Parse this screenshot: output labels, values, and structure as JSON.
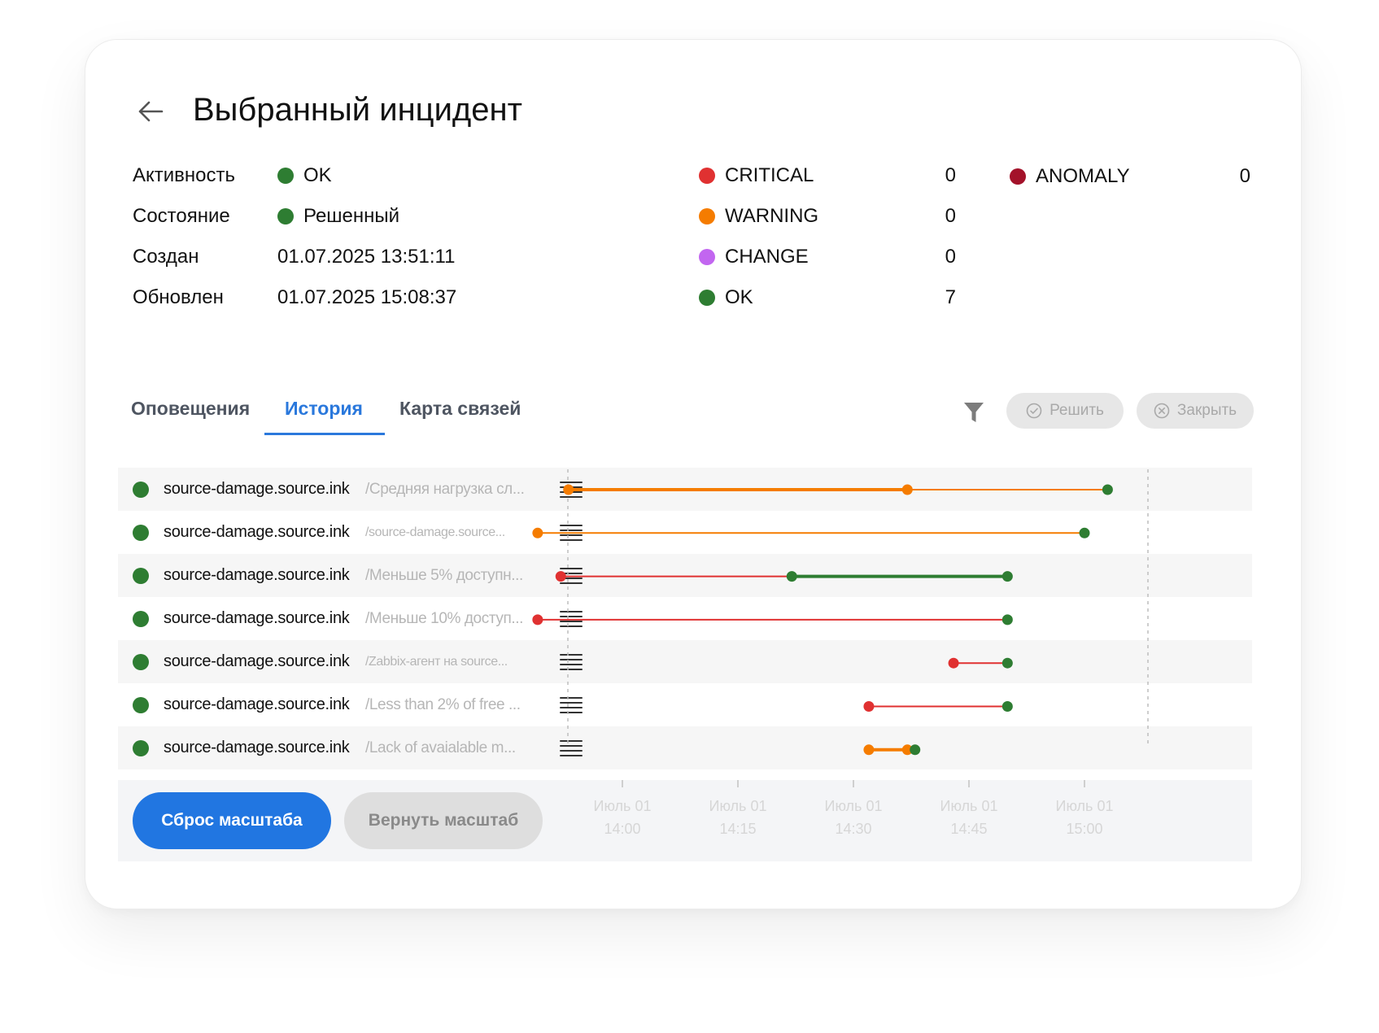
{
  "header": {
    "title": "Выбранный инцидент"
  },
  "info": [
    {
      "label": "Активность",
      "value": "OK",
      "dot_color": "#2e7d32"
    },
    {
      "label": "Состояние",
      "value": "Решенный",
      "dot_color": "#2e7d32"
    },
    {
      "label": "Создан",
      "value": "01.07.2025 13:51:11"
    },
    {
      "label": "Обновлен",
      "value": "01.07.2025 15:08:37"
    }
  ],
  "severity_counts": [
    {
      "name": "CRITICAL",
      "count": "0",
      "color": "#e03131"
    },
    {
      "name": "WARNING",
      "count": "0",
      "color": "#f57c00"
    },
    {
      "name": "CHANGE",
      "count": "0",
      "color": "#c266f0"
    },
    {
      "name": "OK",
      "count": "7",
      "color": "#2e7d32"
    },
    {
      "name": "ANOMALY",
      "count": "0",
      "color": "#a3122a"
    }
  ],
  "tabs": [
    {
      "label": "Оповещения",
      "active": false
    },
    {
      "label": "История",
      "active": true
    },
    {
      "label": "Карта связей",
      "active": false
    }
  ],
  "actions": {
    "resolve_label": "Решить",
    "close_label": "Закрыть",
    "filter_icon": "filter-icon"
  },
  "colors": {
    "ok": "#2e7d32",
    "warning": "#f57c00",
    "critical": "#e03131",
    "accent": "#2176e1"
  },
  "events": [
    {
      "host": "source-damage.source.ink",
      "description": "/Средняя нагрузка сл...",
      "segments": [
        {
          "from": "13:53",
          "to": "14:37",
          "state": "warning",
          "bold": true
        },
        {
          "from": "14:37",
          "to": "15:03",
          "state": "warning",
          "bold": false
        }
      ],
      "points": [
        {
          "t": "13:53",
          "state": "warning"
        },
        {
          "t": "14:37",
          "state": "warning"
        },
        {
          "t": "15:03",
          "state": "ok"
        }
      ]
    },
    {
      "host": "source-damage.source.ink",
      "description": "/source-damage.source...",
      "segments": [
        {
          "from": "13:49",
          "to": "15:00",
          "state": "warning",
          "bold": false
        }
      ],
      "points": [
        {
          "t": "13:49",
          "state": "warning"
        },
        {
          "t": "15:00",
          "state": "ok"
        }
      ]
    },
    {
      "host": "source-damage.source.ink",
      "description": "/Меньше 5% доступн...",
      "segments": [
        {
          "from": "13:52",
          "to": "14:22",
          "state": "critical",
          "bold": false
        },
        {
          "from": "14:22",
          "to": "14:50",
          "state": "ok",
          "bold": true
        }
      ],
      "points": [
        {
          "t": "13:52",
          "state": "critical"
        },
        {
          "t": "14:22",
          "state": "ok"
        },
        {
          "t": "14:50",
          "state": "ok"
        }
      ]
    },
    {
      "host": "source-damage.source.ink",
      "description": "/Меньше 10% доступ...",
      "segments": [
        {
          "from": "13:49",
          "to": "14:50",
          "state": "critical",
          "bold": false
        }
      ],
      "points": [
        {
          "t": "13:49",
          "state": "critical"
        },
        {
          "t": "14:50",
          "state": "ok"
        }
      ]
    },
    {
      "host": "source-damage.source.ink",
      "description": "/Zabbix-агент на source...",
      "segments": [
        {
          "from": "14:43",
          "to": "14:50",
          "state": "critical",
          "bold": false
        }
      ],
      "points": [
        {
          "t": "14:43",
          "state": "critical"
        },
        {
          "t": "14:50",
          "state": "ok"
        }
      ]
    },
    {
      "host": "source-damage.source.ink",
      "description": "/Less than 2% of free ...",
      "segments": [
        {
          "from": "14:32",
          "to": "14:50",
          "state": "critical",
          "bold": false
        }
      ],
      "points": [
        {
          "t": "14:32",
          "state": "critical"
        },
        {
          "t": "14:50",
          "state": "ok"
        }
      ]
    },
    {
      "host": "source-damage.source.ink",
      "description": "/Lack of avaialable m...",
      "segments": [
        {
          "from": "14:32",
          "to": "14:37",
          "state": "warning",
          "bold": true
        }
      ],
      "points": [
        {
          "t": "14:32",
          "state": "warning"
        },
        {
          "t": "14:37",
          "state": "warning"
        },
        {
          "t": "14:38",
          "state": "ok"
        }
      ]
    }
  ],
  "time_axis": {
    "ticks": [
      {
        "t": "14:00",
        "date": "Июль 01",
        "time": "14:00"
      },
      {
        "t": "14:15",
        "date": "Июль 01",
        "time": "14:15"
      },
      {
        "t": "14:30",
        "date": "Июль 01",
        "time": "14:30"
      },
      {
        "t": "14:45",
        "date": "Июль 01",
        "time": "14:45"
      },
      {
        "t": "15:00",
        "date": "Июль 01",
        "time": "15:00"
      }
    ]
  },
  "footer": {
    "reset_label": "Сброс масштаба",
    "restore_label": "Вернуть масштаб"
  }
}
